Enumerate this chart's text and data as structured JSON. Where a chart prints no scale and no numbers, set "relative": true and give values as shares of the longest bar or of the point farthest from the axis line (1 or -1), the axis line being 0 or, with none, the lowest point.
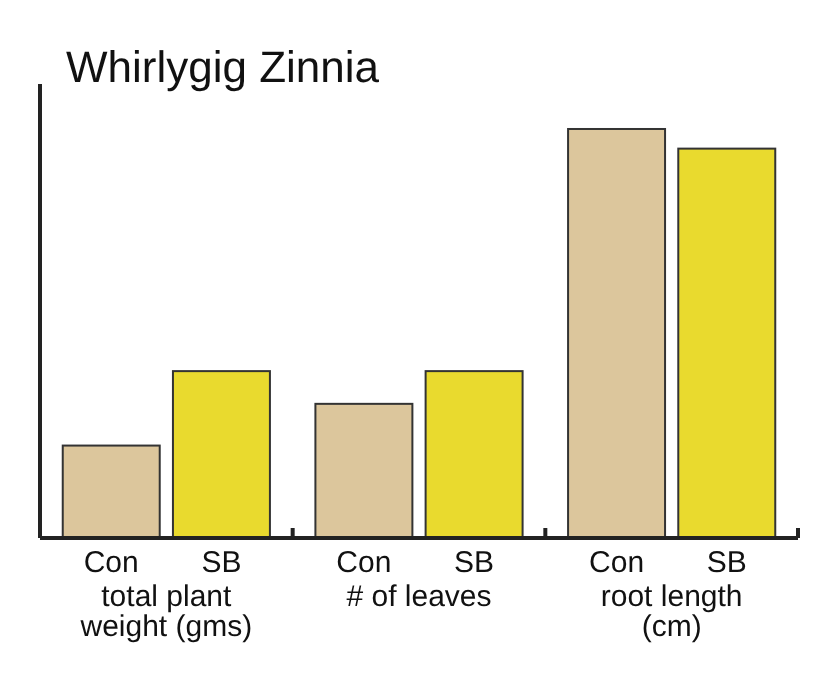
{
  "chart_data": {
    "type": "bar",
    "title": "Whirlygig Zinnia",
    "relative": true,
    "categories": [
      "total plant weight (gms)",
      "# of leaves",
      "root length (cm)"
    ],
    "series": [
      {
        "name": "Con",
        "color": "#dcc69c",
        "values": [
          0.226,
          0.328,
          1
        ]
      },
      {
        "name": "SB",
        "color": "#e9da2e",
        "values": [
          0.408,
          0.408,
          0.952
        ]
      }
    ]
  }
}
